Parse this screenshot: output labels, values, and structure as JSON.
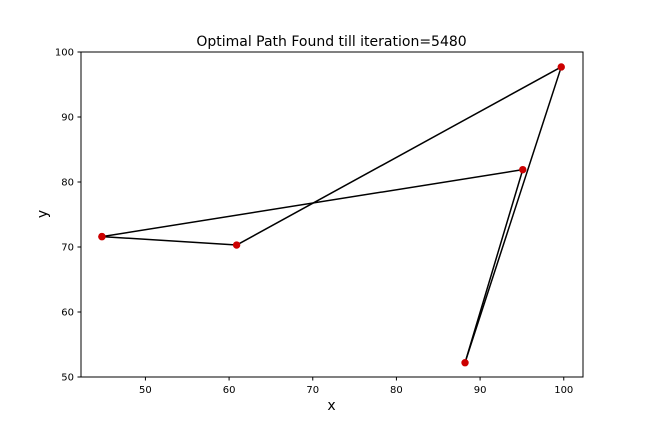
{
  "chart_data": {
    "type": "line",
    "title": "Optimal Path Found till iteration=5480",
    "xlabel": "x",
    "ylabel": "y",
    "xlim": [
      42.3,
      102.3
    ],
    "ylim": [
      50,
      100
    ],
    "xticks": [
      50,
      60,
      70,
      80,
      90,
      100
    ],
    "yticks": [
      50,
      60,
      70,
      80,
      90,
      100
    ],
    "grid": false,
    "points": [
      {
        "x": 44.8,
        "y": 71.6
      },
      {
        "x": 60.9,
        "y": 70.3
      },
      {
        "x": 99.7,
        "y": 97.7
      },
      {
        "x": 88.2,
        "y": 52.2
      },
      {
        "x": 95.1,
        "y": 81.9
      },
      {
        "x": 44.8,
        "y": 71.6
      }
    ],
    "line_color": "#000000",
    "marker_color": "#cc0000"
  }
}
